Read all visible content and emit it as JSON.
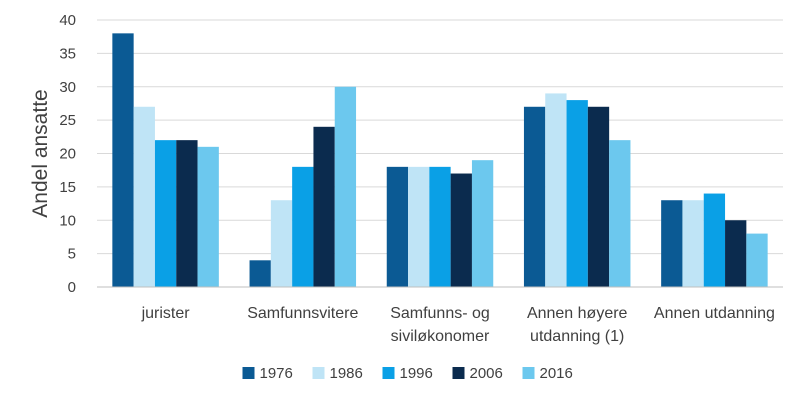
{
  "chart_data": {
    "type": "bar",
    "title": "",
    "xlabel": "",
    "ylabel": "Andel ansatte",
    "ylim": [
      0,
      40
    ],
    "yticks": [
      0,
      5,
      10,
      15,
      20,
      25,
      30,
      35,
      40
    ],
    "grid": true,
    "legend_position": "bottom",
    "categories": [
      [
        "jurister"
      ],
      [
        "Samfunnsvitere"
      ],
      [
        "Samfunns- og",
        "siviløkonomer"
      ],
      [
        "Annen høyere",
        "utdanning (1)"
      ],
      [
        "Annen utdanning"
      ]
    ],
    "series": [
      {
        "name": "1976",
        "color": "#0B5A94",
        "values": [
          38,
          4,
          18,
          27,
          13
        ]
      },
      {
        "name": "1986",
        "color": "#BFE4F6",
        "values": [
          27,
          13,
          18,
          29,
          13
        ]
      },
      {
        "name": "1996",
        "color": "#0AA0E6",
        "values": [
          22,
          18,
          18,
          28,
          14
        ]
      },
      {
        "name": "2006",
        "color": "#0B2B4E",
        "values": [
          22,
          24,
          17,
          27,
          10
        ]
      },
      {
        "name": "2016",
        "color": "#6CC8EE",
        "values": [
          21,
          30,
          19,
          22,
          8
        ]
      }
    ],
    "colors": {
      "axis": "#BFBFBF",
      "grid": "#D9D9D9",
      "text": "#404040"
    }
  }
}
